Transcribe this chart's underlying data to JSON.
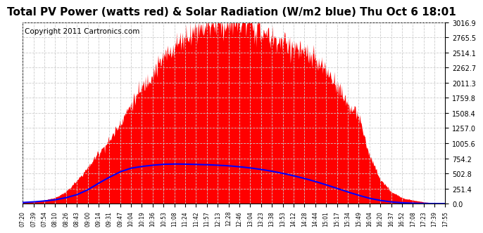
{
  "title": "Total PV Power (watts red) & Solar Radiation (W/m2 blue) Thu Oct 6 18:01",
  "copyright": "Copyright 2011 Cartronics.com",
  "ymax": 3016.9,
  "yticks": [
    0.0,
    251.4,
    502.8,
    754.2,
    1005.6,
    1257.0,
    1508.4,
    1759.8,
    2011.3,
    2262.7,
    2514.1,
    2765.5,
    3016.9
  ],
  "xtick_labels": [
    "07:20",
    "07:39",
    "07:54",
    "08:10",
    "08:26",
    "08:43",
    "09:00",
    "09:14",
    "09:31",
    "09:47",
    "10:04",
    "10:19",
    "10:36",
    "10:53",
    "11:08",
    "11:24",
    "11:42",
    "11:57",
    "12:13",
    "12:28",
    "12:46",
    "13:04",
    "13:23",
    "13:38",
    "13:53",
    "14:12",
    "14:28",
    "14:44",
    "15:01",
    "15:17",
    "15:34",
    "15:49",
    "16:04",
    "16:20",
    "16:37",
    "16:52",
    "17:08",
    "17:23",
    "17:39",
    "17:55"
  ],
  "pv_color": "#FF0000",
  "solar_color": "#0000FF",
  "bg_color": "#FFFFFF",
  "grid_color": "#CCCCCC",
  "title_fontsize": 11,
  "copyright_fontsize": 7.5,
  "pv_values": [
    30,
    40,
    60,
    100,
    200,
    380,
    600,
    850,
    1050,
    1350,
    1650,
    1920,
    2180,
    2420,
    2620,
    2780,
    2900,
    2970,
    3010,
    2980,
    3016,
    2990,
    2850,
    2750,
    2680,
    2600,
    2500,
    2380,
    2200,
    1980,
    1650,
    1450,
    800,
    400,
    200,
    100,
    60,
    30,
    10,
    5
  ],
  "solar_values": [
    20,
    30,
    45,
    65,
    100,
    150,
    230,
    340,
    440,
    530,
    590,
    620,
    640,
    655,
    660,
    658,
    652,
    648,
    640,
    630,
    615,
    595,
    570,
    540,
    505,
    465,
    420,
    370,
    315,
    255,
    195,
    140,
    90,
    55,
    30,
    15,
    8,
    4,
    2,
    1
  ]
}
